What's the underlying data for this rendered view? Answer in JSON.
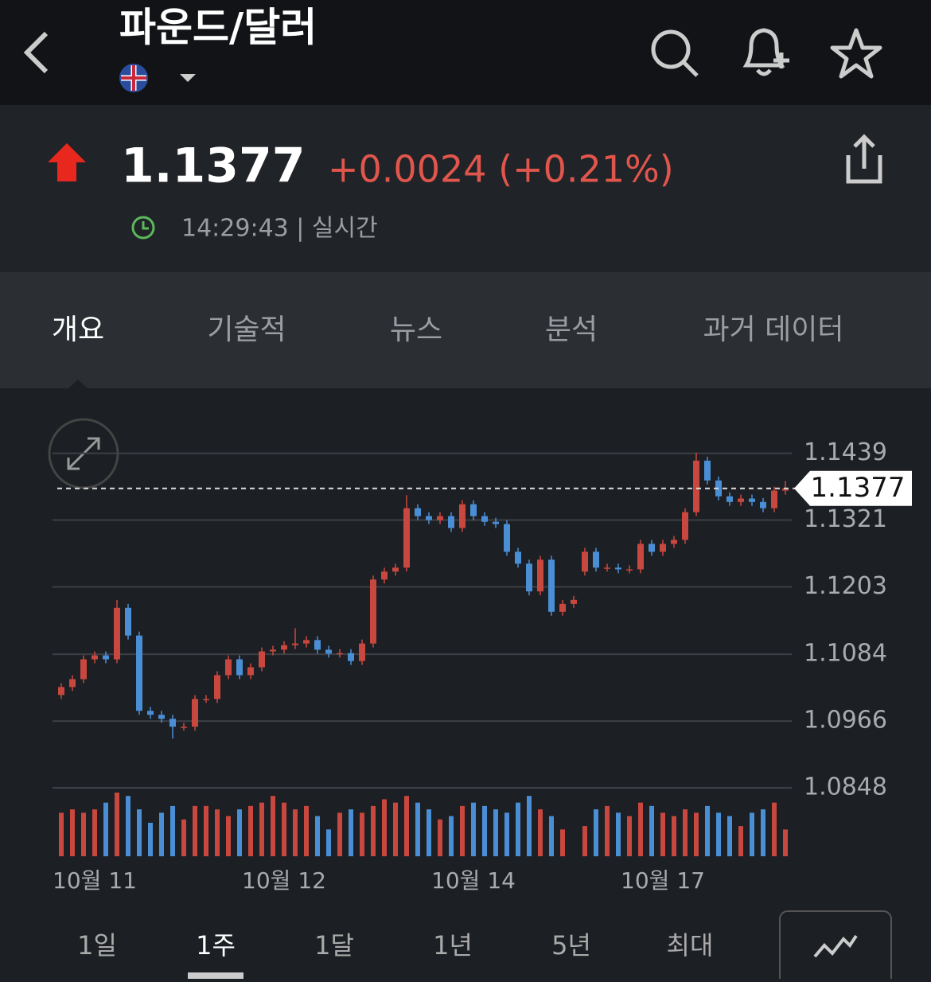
{
  "header": {
    "title": "파운드/달러"
  },
  "quote": {
    "price": "1.1377",
    "change": "+0.0024 (+0.21%)",
    "time": "14:29:43 | 실시간"
  },
  "tabs": [
    "개요",
    "기술적",
    "뉴스",
    "분석",
    "과거 데이터"
  ],
  "ranges": [
    "1일",
    "1주",
    "1달",
    "1년",
    "5년",
    "최대"
  ],
  "chart_data": {
    "type": "candlestick",
    "categories": [
      null,
      null,
      null,
      "10월 11",
      null,
      null,
      null,
      null,
      null,
      null,
      null,
      null,
      null,
      null,
      null,
      null,
      null,
      null,
      null,
      null,
      "10월 12",
      null,
      null,
      null,
      null,
      null,
      null,
      null,
      null,
      null,
      null,
      null,
      null,
      null,
      null,
      null,
      null,
      "10월 14",
      null,
      null,
      null,
      null,
      null,
      null,
      null,
      null,
      null,
      null,
      null,
      null,
      null,
      null,
      null,
      null,
      "10월 17",
      null,
      null,
      null,
      null,
      null,
      null,
      null,
      null,
      null,
      null,
      null
    ],
    "open": [
      1.1012,
      1.1026,
      1.104,
      1.1075,
      1.1082,
      1.1075,
      1.1166,
      1.1117,
      1.0984,
      1.0977,
      1.097,
      1.0956,
      1.0956,
      1.1005,
      1.1005,
      1.1047,
      1.1075,
      1.1047,
      1.1061,
      1.1089,
      1.1092,
      1.11,
      1.1103,
      1.1109,
      1.1092,
      1.1085,
      1.1086,
      1.1072,
      1.1103,
      1.1216,
      1.123,
      1.1237,
      1.1342,
      1.1328,
      1.1321,
      1.1328,
      1.1307,
      1.1349,
      1.1328,
      1.1318,
      1.1314,
      1.1265,
      1.1244,
      1.1195,
      1.1251,
      1.1159,
      1.1173,
      1.123,
      1.1265,
      1.1237,
      1.1237,
      1.1234,
      1.1234,
      1.1279,
      1.1265,
      1.1279,
      1.1286,
      1.1335,
      1.1426,
      1.1391,
      1.1363,
      1.1353,
      1.1359,
      1.1353,
      1.1342,
      1.1373
    ],
    "high": [
      1.1033,
      1.1047,
      1.1082,
      1.1089,
      1.1089,
      1.118,
      1.1173,
      1.1124,
      1.0991,
      1.0984,
      1.0977,
      1.0963,
      1.1012,
      1.1012,
      1.1054,
      1.1082,
      1.1082,
      1.1068,
      1.1096,
      1.1099,
      1.1107,
      1.113,
      1.1116,
      1.1116,
      1.1099,
      1.1093,
      1.1093,
      1.111,
      1.1223,
      1.1237,
      1.1244,
      1.1365,
      1.1349,
      1.1335,
      1.1335,
      1.1335,
      1.1356,
      1.1356,
      1.1335,
      1.1325,
      1.1321,
      1.1272,
      1.1251,
      1.1258,
      1.1258,
      1.118,
      1.1187,
      1.1272,
      1.1272,
      1.1244,
      1.1244,
      1.1241,
      1.1286,
      1.1286,
      1.1286,
      1.1293,
      1.1342,
      1.144,
      1.1433,
      1.1398,
      1.137,
      1.1366,
      1.1366,
      1.136,
      1.138,
      1.139
    ],
    "low": [
      1.1005,
      1.1019,
      1.1033,
      1.1068,
      1.1068,
      1.1068,
      1.111,
      1.0977,
      1.097,
      1.0963,
      1.0935,
      1.0949,
      1.0949,
      1.0998,
      1.0998,
      1.104,
      1.104,
      1.104,
      1.1054,
      1.1082,
      1.1085,
      1.1093,
      1.1096,
      1.1085,
      1.1078,
      1.1078,
      1.1065,
      1.1065,
      1.1096,
      1.1209,
      1.1223,
      1.123,
      1.1321,
      1.1314,
      1.1314,
      1.13,
      1.13,
      1.1321,
      1.1311,
      1.1307,
      1.1258,
      1.1237,
      1.1188,
      1.1188,
      1.1152,
      1.1152,
      1.1166,
      1.1223,
      1.123,
      1.123,
      1.1227,
      1.1227,
      1.1227,
      1.1258,
      1.1258,
      1.1272,
      1.1279,
      1.1328,
      1.1384,
      1.1356,
      1.1346,
      1.1346,
      1.1346,
      1.1335,
      1.1335,
      1.1366
    ],
    "close": [
      1.1026,
      1.104,
      1.1075,
      1.1082,
      1.1075,
      1.1166,
      1.1117,
      1.0984,
      1.0977,
      1.097,
      1.0956,
      1.0956,
      1.1005,
      1.1005,
      1.1047,
      1.1075,
      1.1047,
      1.1061,
      1.1089,
      1.1092,
      1.11,
      1.1103,
      1.1109,
      1.1092,
      1.1085,
      1.1086,
      1.1072,
      1.1103,
      1.1216,
      1.123,
      1.1237,
      1.1342,
      1.1328,
      1.1321,
      1.1328,
      1.1307,
      1.1349,
      1.1328,
      1.1318,
      1.1314,
      1.1265,
      1.1244,
      1.1195,
      1.1251,
      1.1159,
      1.1173,
      1.118,
      1.1265,
      1.1237,
      1.1237,
      1.1234,
      1.1234,
      1.1279,
      1.1265,
      1.1279,
      1.1286,
      1.1335,
      1.1426,
      1.1391,
      1.1363,
      1.1353,
      1.1359,
      1.1353,
      1.1342,
      1.1373,
      1.1377
    ],
    "volumes": [
      65,
      70,
      65,
      70,
      80,
      95,
      90,
      70,
      50,
      65,
      75,
      55,
      75,
      75,
      70,
      60,
      70,
      75,
      80,
      90,
      80,
      70,
      75,
      60,
      40,
      65,
      70,
      65,
      75,
      85,
      80,
      90,
      80,
      70,
      55,
      60,
      75,
      80,
      75,
      70,
      65,
      80,
      90,
      70,
      60,
      40,
      0,
      45,
      70,
      75,
      65,
      60,
      80,
      75,
      65,
      60,
      70,
      65,
      75,
      65,
      60,
      45,
      65,
      70,
      80,
      40
    ],
    "up_color": "#c8483f",
    "down_color": "#4a8fd6",
    "current_price": 1.1377,
    "ylim": [
      1.0848,
      1.1475
    ],
    "yticks": [
      1.0848,
      1.0966,
      1.1084,
      1.1203,
      1.1321,
      1.1439
    ],
    "grid": true
  }
}
